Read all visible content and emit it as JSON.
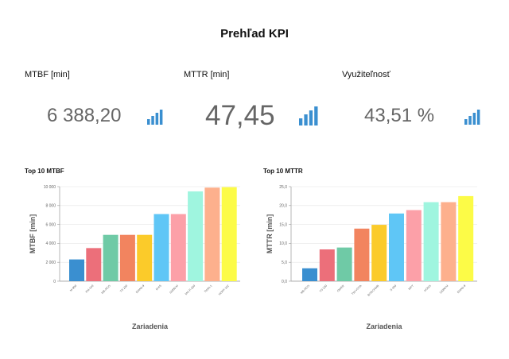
{
  "page": {
    "title": "Prehľad KPI"
  },
  "kpis": [
    {
      "label": "MTBF [min]",
      "value": "6 388,20",
      "icon": "bar-chart-icon",
      "color": "#3a8fd0"
    },
    {
      "label": "MTTR [min]",
      "value": "47,45",
      "icon": "bar-chart-icon",
      "color": "#3a8fd0"
    },
    {
      "label": "Využiteľnosť",
      "value": "43,51 %",
      "icon": "bar-chart-icon",
      "color": "#3a8fd0"
    }
  ],
  "chart_data": [
    {
      "type": "bar",
      "title": "Top 10 MTBF",
      "xlabel": "Zariadenia",
      "ylabel": "MTBF [min]",
      "ylim": [
        0,
        10000
      ],
      "yticks": [
        "0",
        "2 000",
        "4 000",
        "6 000",
        "8 000",
        "10 000"
      ],
      "grid": true,
      "categories": [
        "M-900",
        "KM-160",
        "MB-RCO",
        "TS 230",
        "EMAS-9",
        "M-65",
        "12000-M",
        "MG-F-250",
        "TWIN-1",
        "HOFF-162"
      ],
      "values": [
        2300,
        3500,
        4900,
        4900,
        4900,
        7100,
        7100,
        9500,
        9900,
        9950
      ],
      "colors": [
        "#3a8fd0",
        "#ec6f7a",
        "#6fcaa6",
        "#f2845f",
        "#fbcb2a",
        "#5fc6f6",
        "#fca0a8",
        "#9ff5df",
        "#fdb08d",
        "#fcfb47"
      ]
    },
    {
      "type": "bar",
      "title": "Top 10 MTTR",
      "xlabel": "Zariadenia",
      "ylabel": "MTTR [min]",
      "ylim": [
        0,
        25
      ],
      "yticks": [
        "0,0",
        "5,0",
        "10,0",
        "15,0",
        "20,0",
        "25,0"
      ],
      "grid": true,
      "categories": [
        "MB-RCO",
        "TS 230",
        "OWER",
        "TW-VOTA",
        "BITECHMB",
        "S 400",
        "MPT",
        "KONO",
        "12000-M",
        "EMAS-9"
      ],
      "values": [
        3.4,
        8.4,
        8.9,
        13.9,
        14.9,
        17.9,
        18.8,
        20.9,
        20.9,
        22.5
      ],
      "colors": [
        "#3a8fd0",
        "#ec6f7a",
        "#6fcaa6",
        "#f2845f",
        "#fbcb2a",
        "#5fc6f6",
        "#fca0a8",
        "#9ff5df",
        "#fdb08d",
        "#fcfb47"
      ]
    }
  ]
}
